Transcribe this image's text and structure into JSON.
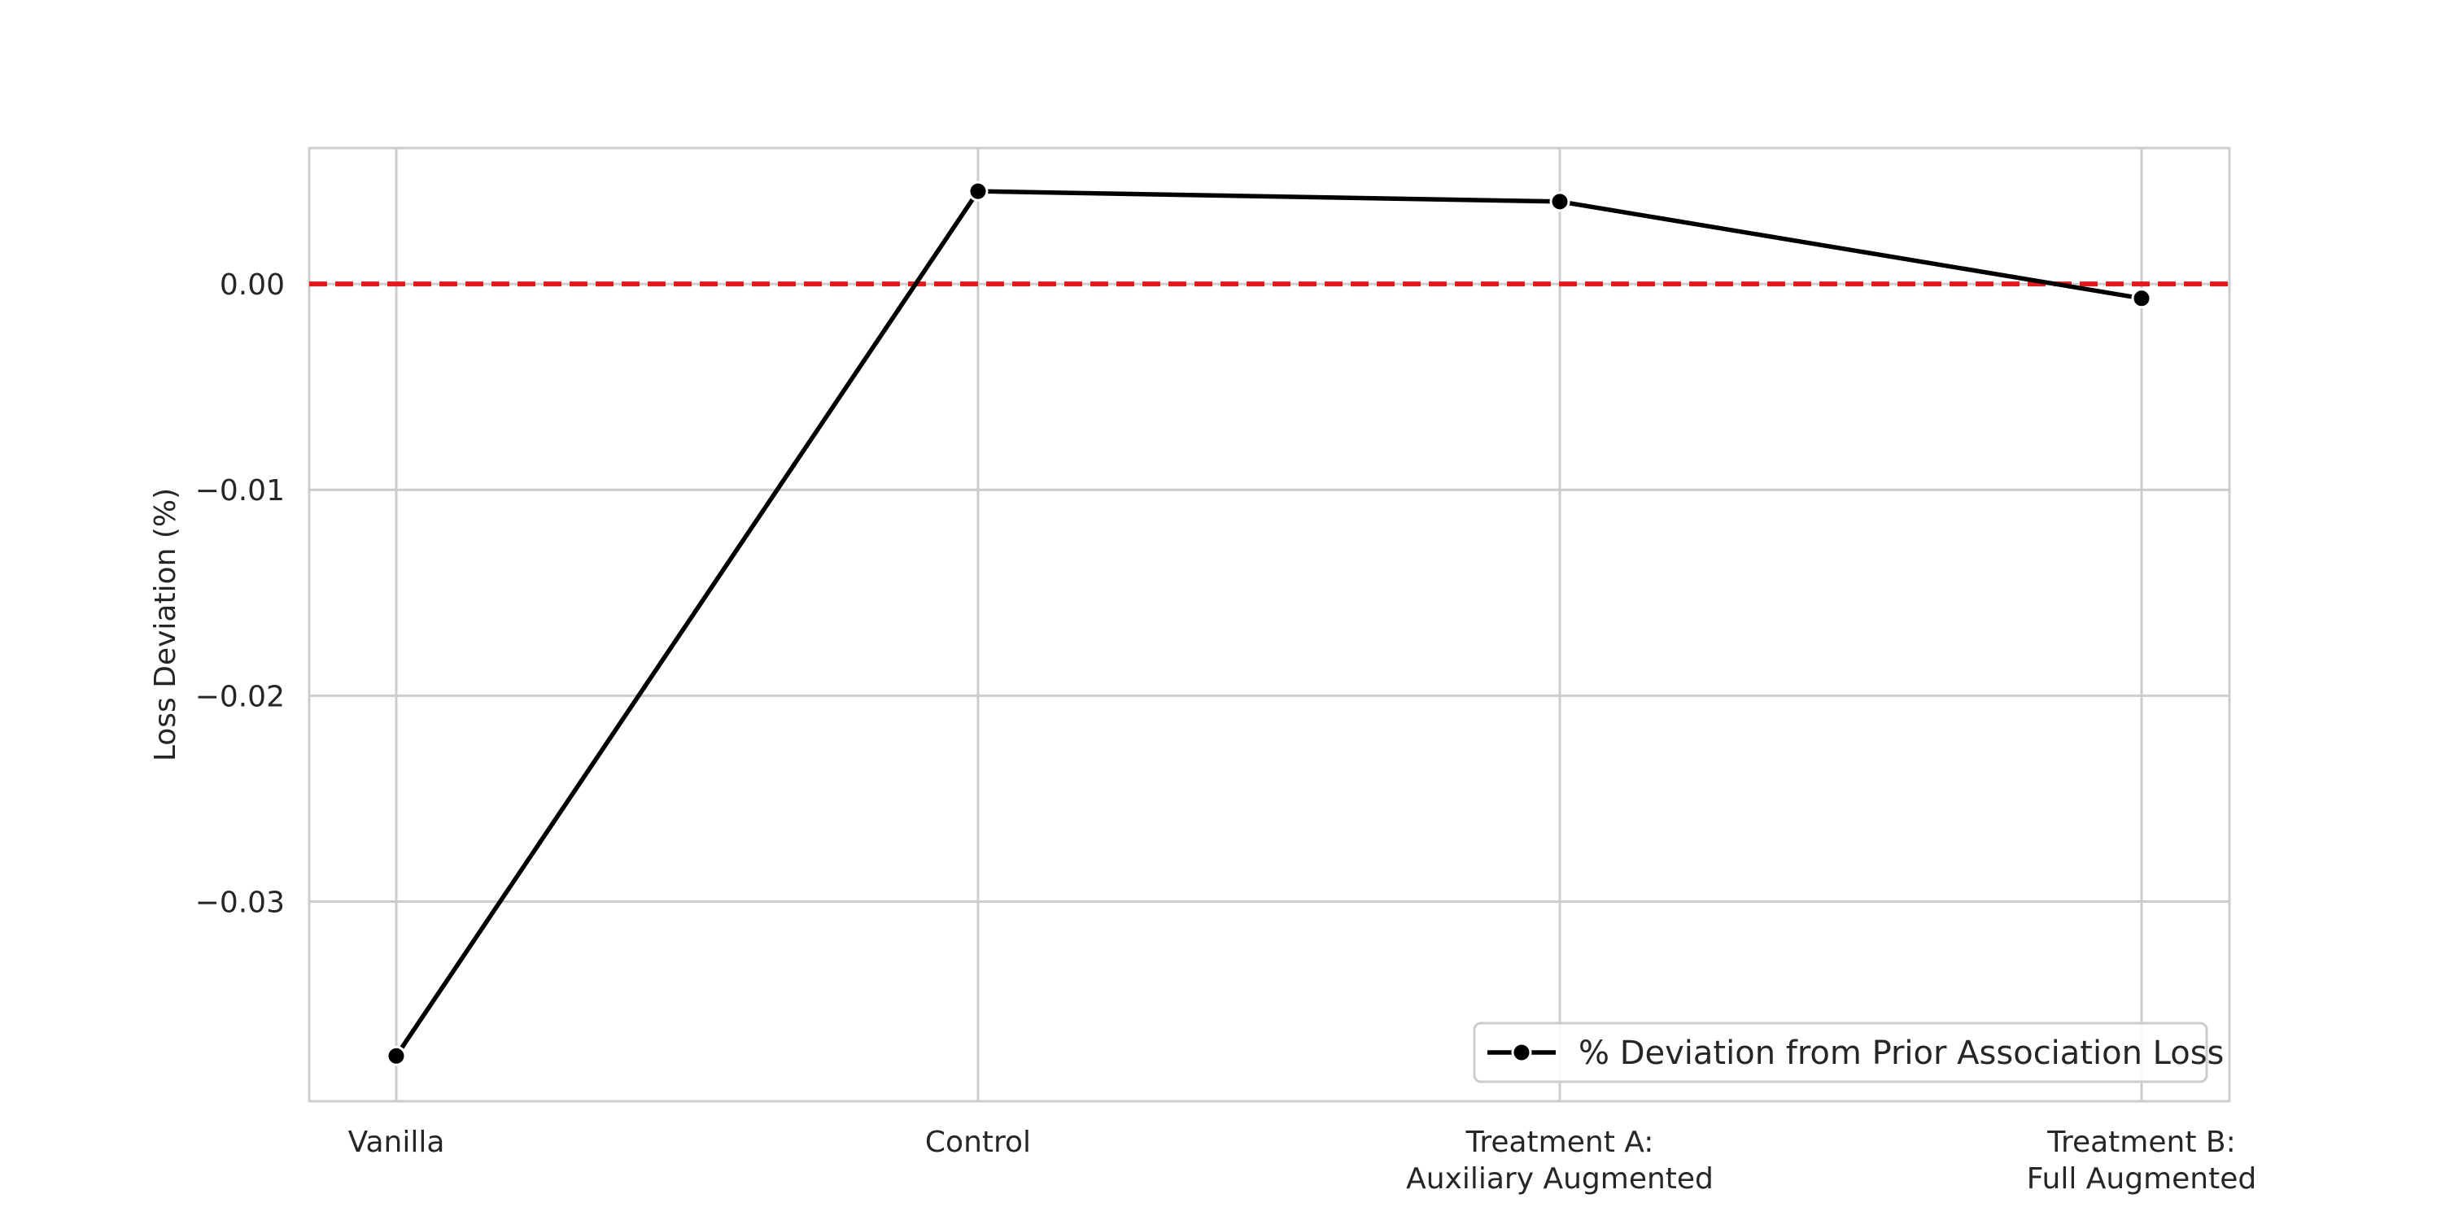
{
  "chart_data": {
    "type": "line",
    "title": "",
    "xlabel": "",
    "ylabel": "Loss Deviation (%)",
    "categories": [
      [
        "Vanilla"
      ],
      [
        "Control"
      ],
      [
        "Treatment A:",
        "Auxiliary Augmented"
      ],
      [
        "Treatment B:",
        "Full Augmented"
      ]
    ],
    "series": [
      {
        "name": "% Deviation from Prior Association Loss",
        "values": [
          -0.0375,
          0.0045,
          0.004,
          -0.0007
        ],
        "color": "#000000",
        "marker": "circle"
      }
    ],
    "reference_line": {
      "y": 0.0,
      "color": "#e41a1c",
      "style": "dashed"
    },
    "yticks": [
      0.0,
      -0.01,
      -0.02,
      -0.03
    ],
    "ytick_labels": [
      "0.00",
      "−0.01",
      "−0.02",
      "−0.03"
    ],
    "ylim": [
      -0.0397,
      0.0066
    ],
    "grid": true,
    "legend": {
      "position": "lower-right"
    },
    "colors": {
      "grid": "#cccccc",
      "text": "#262626"
    }
  }
}
